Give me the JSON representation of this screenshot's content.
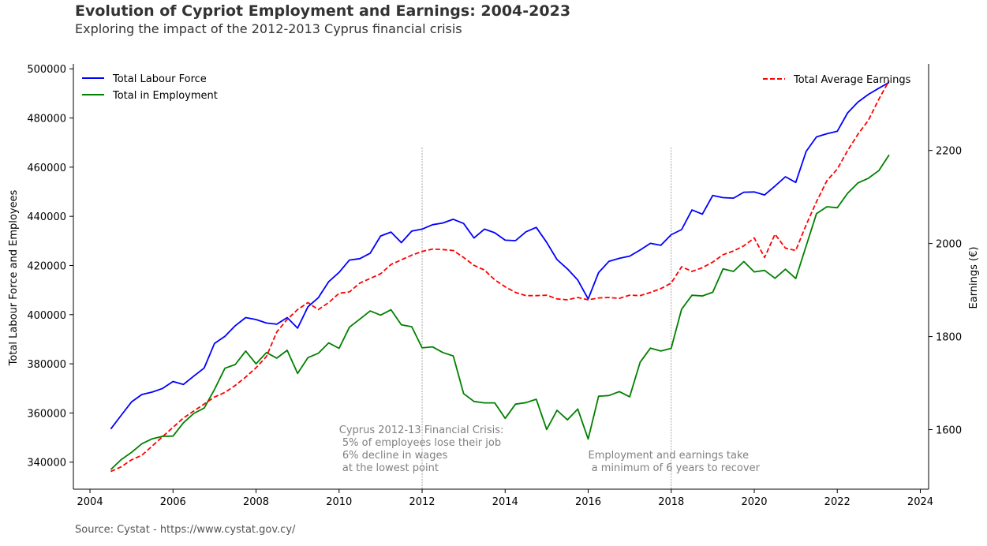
{
  "chart_data": {
    "type": "line",
    "title": "Evolution of Cypriot Employment and Earnings: 2004-2023",
    "subtitle": "Exploring the impact of the 2012-2013 Cyprus financial crisis",
    "source": "Source: Cystat - https://www.cystat.gov.cy/",
    "x_ticks": [
      "2004",
      "2006",
      "2008",
      "2010",
      "2012",
      "2014",
      "2016",
      "2018",
      "2020",
      "2022",
      "2024"
    ],
    "xlim": [
      2003.6,
      2024.2
    ],
    "left_axis": {
      "label": "Total Labour Force and Employees",
      "ylim": [
        329000,
        502000
      ],
      "ticks": [
        "340000",
        "360000",
        "380000",
        "400000",
        "420000",
        "440000",
        "460000",
        "480000",
        "500000"
      ]
    },
    "right_axis": {
      "label": "Earnings (€)",
      "ylim": [
        1472,
        2386
      ],
      "ticks": [
        "1600",
        "1800",
        "2000",
        "2200"
      ]
    },
    "colors": {
      "labour": "#0000ff",
      "employment": "#008000",
      "earnings": "#ff0000",
      "vline": "#808080"
    },
    "legend_left": [
      "Total Labour Force",
      "Total in Employment"
    ],
    "legend_right": [
      "Total Average Earnings"
    ],
    "series": [
      {
        "name": "Total Labour Force",
        "axis": "left",
        "x": [
          2004.5,
          2004.75,
          2005,
          2005.25,
          2005.5,
          2005.75,
          2006,
          2006.25,
          2006.5,
          2006.75,
          2007,
          2007.25,
          2007.5,
          2007.75,
          2008,
          2008.25,
          2008.5,
          2008.75,
          2009,
          2009.25,
          2009.5,
          2009.75,
          2010,
          2010.25,
          2010.5,
          2010.75,
          2011,
          2011.25,
          2011.5,
          2011.75,
          2012,
          2012.25,
          2012.5,
          2012.75,
          2013,
          2013.25,
          2013.5,
          2013.75,
          2014,
          2014.25,
          2014.5,
          2014.75,
          2015,
          2015.25,
          2015.5,
          2015.75,
          2016,
          2016.25,
          2016.5,
          2016.75,
          2017,
          2017.25,
          2017.5,
          2017.75,
          2018,
          2018.25,
          2018.5,
          2018.75,
          2019,
          2019.25,
          2019.5,
          2019.75,
          2020,
          2020.25,
          2020.5,
          2020.75,
          2021,
          2021.25,
          2021.5,
          2021.75,
          2022,
          2022.25,
          2022.5,
          2022.75,
          2023,
          2023.25
        ],
        "values": [
          353500,
          359000,
          364500,
          367500,
          368500,
          370000,
          372800,
          371600,
          375000,
          378300,
          388300,
          391200,
          395500,
          398800,
          398000,
          396600,
          396100,
          398800,
          394500,
          403200,
          406900,
          413400,
          417200,
          422200,
          422800,
          425000,
          432000,
          433600,
          429300,
          434000,
          434800,
          436600,
          437300,
          438800,
          437100,
          431200,
          434800,
          433300,
          430300,
          430100,
          433700,
          435500,
          429400,
          422400,
          418600,
          414100,
          406400,
          417100,
          421700,
          422900,
          423800,
          426300,
          429000,
          428200,
          432500,
          434600,
          442600,
          440900,
          448500,
          447600,
          447400,
          449800,
          449900,
          448700,
          452300,
          456100,
          453800,
          466400,
          472300,
          473600,
          474600,
          482100,
          486500,
          489600,
          492100,
          494500
        ]
      },
      {
        "name": "Total in Employment",
        "axis": "left",
        "x": [
          2004.5,
          2004.75,
          2005,
          2005.25,
          2005.5,
          2005.75,
          2006,
          2006.25,
          2006.5,
          2006.75,
          2007,
          2007.25,
          2007.5,
          2007.75,
          2008,
          2008.25,
          2008.5,
          2008.75,
          2009,
          2009.25,
          2009.5,
          2009.75,
          2010,
          2010.25,
          2010.5,
          2010.75,
          2011,
          2011.25,
          2011.5,
          2011.75,
          2012,
          2012.25,
          2012.5,
          2012.75,
          2013,
          2013.25,
          2013.5,
          2013.75,
          2014,
          2014.25,
          2014.5,
          2014.75,
          2015,
          2015.25,
          2015.5,
          2015.75,
          2016,
          2016.25,
          2016.5,
          2016.75,
          2017,
          2017.25,
          2017.5,
          2017.75,
          2018,
          2018.25,
          2018.5,
          2018.75,
          2019,
          2019.25,
          2019.5,
          2019.75,
          2020,
          2020.25,
          2020.5,
          2020.75,
          2021,
          2021.25,
          2021.5,
          2021.75,
          2022,
          2022.25,
          2022.5,
          2022.75,
          2023,
          2023.25
        ],
        "values": [
          337000,
          341000,
          344000,
          347500,
          349500,
          350500,
          350600,
          356000,
          359800,
          362000,
          369600,
          378200,
          379700,
          385200,
          380000,
          384600,
          382300,
          385500,
          376100,
          382500,
          384300,
          388500,
          386300,
          394900,
          398200,
          401500,
          399800,
          402000,
          395900,
          395100,
          386500,
          386900,
          384600,
          383200,
          367900,
          364700,
          364100,
          364100,
          357800,
          363600,
          364200,
          365600,
          353300,
          361100,
          357200,
          361600,
          349400,
          366800,
          367100,
          368700,
          366600,
          380600,
          386400,
          385200,
          386300,
          402200,
          407900,
          407600,
          409100,
          418600,
          417600,
          421600,
          417400,
          418000,
          414800,
          418500,
          414700,
          428000,
          441100,
          443900,
          443500,
          449400,
          453600,
          455500,
          458600,
          465000
        ]
      },
      {
        "name": "Total Average Earnings",
        "axis": "right",
        "x": [
          2004.5,
          2004.75,
          2005,
          2005.25,
          2005.5,
          2005.75,
          2006,
          2006.25,
          2006.5,
          2006.75,
          2007,
          2007.25,
          2007.5,
          2007.75,
          2008,
          2008.25,
          2008.5,
          2008.75,
          2009,
          2009.25,
          2009.5,
          2009.75,
          2010,
          2010.25,
          2010.5,
          2010.75,
          2011,
          2011.25,
          2011.5,
          2011.75,
          2012,
          2012.25,
          2012.5,
          2012.75,
          2013,
          2013.25,
          2013.5,
          2013.75,
          2014,
          2014.25,
          2014.5,
          2014.75,
          2015,
          2015.25,
          2015.5,
          2015.75,
          2016,
          2016.25,
          2016.5,
          2016.75,
          2017,
          2017.25,
          2017.5,
          2017.75,
          2018,
          2018.25,
          2018.5,
          2018.75,
          2019,
          2019.25,
          2019.5,
          2019.75,
          2020,
          2020.25,
          2020.5,
          2020.75,
          2021,
          2021.25,
          2021.5,
          2021.75,
          2022,
          2022.25,
          2022.5,
          2022.75,
          2023,
          2023.25
        ],
        "values": [
          1510,
          1520,
          1535,
          1545,
          1565,
          1585,
          1605,
          1625,
          1640,
          1655,
          1670,
          1680,
          1695,
          1713,
          1733,
          1757,
          1810,
          1837,
          1858,
          1873,
          1858,
          1873,
          1893,
          1896,
          1915,
          1925,
          1935,
          1955,
          1965,
          1975,
          1983,
          1988,
          1987,
          1985,
          1970,
          1953,
          1943,
          1922,
          1907,
          1895,
          1888,
          1888,
          1889,
          1881,
          1879,
          1884,
          1879,
          1883,
          1884,
          1882,
          1889,
          1888,
          1895,
          1903,
          1915,
          1950,
          1940,
          1948,
          1960,
          1976,
          1984,
          1995,
          2012,
          1970,
          2020,
          1990,
          1985,
          2040,
          2090,
          2135,
          2160,
          2200,
          2235,
          2265,
          2310,
          2350
        ]
      }
    ],
    "vlines": [
      2012,
      2018
    ],
    "annotations": [
      {
        "x": 2010,
        "lines": [
          "Cyprus 2012-13 Financial Crisis:",
          " 5% of employees lose their job",
          " 6% decline in wages",
          " at the lowest point"
        ]
      },
      {
        "x": 2016,
        "lines": [
          "Employment and earnings take",
          " a minimum of 6 years to recover"
        ]
      }
    ]
  }
}
